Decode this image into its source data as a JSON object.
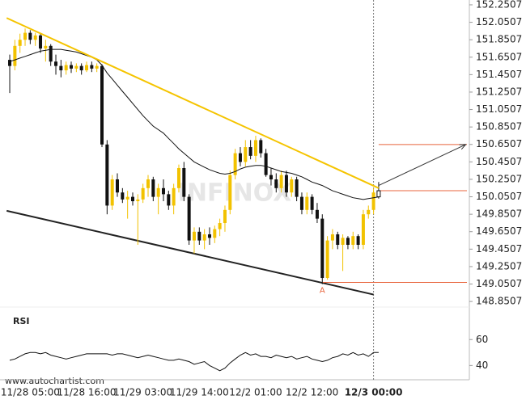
{
  "chart_data": {
    "type": "candlestick",
    "categories": [
      null,
      null,
      null,
      null,
      "11/28 05:00",
      null,
      null,
      null,
      null,
      null,
      null,
      null,
      null,
      null,
      null,
      "11/28 16:00",
      null,
      null,
      null,
      null,
      null,
      null,
      null,
      null,
      null,
      null,
      "11/29 03:00",
      null,
      null,
      null,
      null,
      null,
      null,
      null,
      null,
      null,
      null,
      "11/29 14:00",
      null,
      null,
      null,
      null,
      null,
      null,
      null,
      null,
      null,
      null,
      "12/2 01:00",
      null,
      null,
      null,
      null,
      null,
      null,
      null,
      null,
      null,
      null,
      "12/2 12:00",
      null,
      null,
      null,
      null,
      null,
      null,
      null,
      null,
      null,
      null,
      null,
      "12/3 00:00",
      null
    ],
    "open": [
      151.62,
      151.55,
      151.78,
      151.85,
      151.93,
      151.85,
      151.9,
      151.75,
      151.78,
      151.6,
      151.55,
      151.5,
      151.56,
      151.52,
      151.55,
      151.5,
      151.56,
      151.52,
      151.55,
      150.65,
      149.95,
      150.25,
      150.1,
      150.02,
      150.05,
      150.0,
      150.02,
      150.15,
      150.25,
      150.05,
      150.15,
      150.08,
      149.95,
      150.15,
      150.38,
      150.05,
      149.55,
      149.65,
      149.55,
      149.62,
      149.58,
      149.68,
      149.75,
      149.9,
      150.3,
      150.55,
      150.45,
      150.62,
      150.52,
      150.7,
      150.55,
      150.3,
      150.25,
      150.15,
      150.3,
      150.1,
      150.25,
      150.05,
      149.9,
      150.05,
      149.9,
      149.8,
      149.12,
      149.55,
      149.62,
      149.5,
      149.58,
      149.5,
      149.6,
      149.5,
      149.85,
      149.9,
      150.05
    ],
    "high": [
      151.68,
      151.85,
      151.92,
      151.98,
      151.96,
      151.93,
      151.92,
      151.85,
      151.8,
      151.68,
      151.62,
      151.6,
      151.6,
      151.58,
      151.58,
      151.6,
      151.6,
      151.58,
      151.57,
      150.7,
      150.3,
      150.32,
      150.15,
      150.12,
      150.1,
      150.08,
      150.2,
      150.3,
      150.28,
      150.2,
      150.25,
      150.12,
      150.2,
      150.42,
      150.45,
      150.08,
      149.7,
      149.7,
      149.68,
      149.7,
      149.72,
      149.8,
      149.95,
      150.35,
      150.6,
      150.62,
      150.7,
      150.7,
      150.75,
      150.72,
      150.6,
      150.38,
      150.32,
      150.35,
      150.35,
      150.28,
      150.28,
      150.1,
      150.1,
      150.08,
      149.98,
      149.85,
      149.6,
      149.68,
      149.65,
      149.62,
      149.6,
      149.65,
      149.62,
      149.9,
      149.95,
      150.15,
      150.22
    ],
    "low": [
      151.24,
      151.5,
      151.7,
      151.78,
      151.8,
      151.78,
      151.7,
      151.6,
      151.55,
      151.45,
      151.42,
      151.45,
      151.47,
      151.48,
      151.45,
      151.48,
      151.48,
      151.48,
      150.62,
      149.85,
      149.9,
      150.05,
      149.98,
      149.8,
      149.95,
      149.5,
      149.98,
      150.05,
      150.0,
      149.85,
      150.0,
      149.9,
      149.85,
      150.1,
      150.0,
      149.5,
      149.4,
      149.5,
      149.45,
      149.5,
      149.52,
      149.6,
      149.65,
      149.85,
      150.25,
      150.4,
      150.4,
      150.48,
      150.45,
      150.5,
      150.28,
      150.18,
      150.1,
      150.1,
      150.05,
      150.05,
      150.0,
      149.85,
      149.85,
      149.85,
      149.75,
      149.05,
      149.1,
      149.45,
      149.45,
      149.2,
      149.45,
      149.45,
      149.45,
      149.45,
      149.8,
      149.85,
      150.03
    ],
    "close": [
      151.55,
      151.78,
      151.85,
      151.93,
      151.85,
      151.9,
      151.75,
      151.78,
      151.6,
      151.55,
      151.5,
      151.56,
      151.52,
      151.55,
      151.5,
      151.56,
      151.52,
      151.55,
      150.65,
      149.95,
      150.25,
      150.1,
      150.02,
      150.05,
      150.0,
      150.02,
      150.15,
      150.25,
      150.05,
      150.15,
      150.08,
      149.95,
      150.15,
      150.38,
      150.05,
      149.55,
      149.65,
      149.55,
      149.62,
      149.58,
      149.68,
      149.75,
      149.9,
      150.3,
      150.55,
      150.45,
      150.62,
      150.52,
      150.7,
      150.55,
      150.3,
      150.25,
      150.15,
      150.3,
      150.1,
      150.25,
      150.05,
      149.9,
      150.05,
      149.9,
      149.8,
      149.12,
      149.55,
      149.62,
      149.5,
      149.58,
      149.5,
      149.6,
      149.5,
      149.85,
      149.9,
      150.1,
      150.12
    ],
    "up_color": "#f2c200",
    "down_color": "#111111",
    "last_candle_color": "#ffffff",
    "moving_average": {
      "color": "#111111",
      "values": [
        151.6,
        151.62,
        151.64,
        151.66,
        151.68,
        151.7,
        151.72,
        151.73,
        151.74,
        151.74,
        151.74,
        151.73,
        151.72,
        151.71,
        151.69,
        151.67,
        151.65,
        151.62,
        151.56,
        151.47,
        151.4,
        151.33,
        151.26,
        151.19,
        151.12,
        151.05,
        150.98,
        150.92,
        150.86,
        150.82,
        150.78,
        150.72,
        150.66,
        150.6,
        150.55,
        150.5,
        150.45,
        150.42,
        150.39,
        150.36,
        150.34,
        150.32,
        150.31,
        150.32,
        150.34,
        150.37,
        150.39,
        150.4,
        150.41,
        150.41,
        150.4,
        150.38,
        150.36,
        150.34,
        150.33,
        150.32,
        150.3,
        150.28,
        150.25,
        150.22,
        150.2,
        150.18,
        150.15,
        150.12,
        150.1,
        150.08,
        150.06,
        150.04,
        150.03,
        150.02,
        150.03,
        150.04,
        150.05
      ]
    },
    "xlim": [
      -1.9,
      89.7
    ],
    "ylim": [
      148.787,
      152.306
    ],
    "yticks": [
      152.2507,
      152.0507,
      151.8507,
      151.6507,
      151.4507,
      151.2507,
      151.0507,
      150.8507,
      150.6507,
      150.4507,
      150.2507,
      150.0507,
      149.8507,
      149.6507,
      149.4507,
      149.2507,
      149.0507,
      148.8507
    ],
    "trend_lines": [
      {
        "color": "#f5c400",
        "x": [
          -0.6,
          72
        ],
        "y": [
          152.1,
          150.15
        ]
      },
      {
        "color": "#222222",
        "x": [
          -0.6,
          71
        ],
        "y": [
          149.89,
          148.93
        ]
      }
    ],
    "levels": [
      {
        "color": "#e8643c",
        "from": 72,
        "value": 150.65
      },
      {
        "color": "#e8643c",
        "from": 72,
        "value": 150.12
      },
      {
        "color": "#e8643c",
        "from": 61,
        "value": 149.07
      }
    ],
    "arrow": {
      "color": "#333333",
      "x": [
        72,
        89
      ],
      "y": [
        150.18,
        150.65
      ]
    },
    "pattern_point": {
      "label": "A",
      "x": 61,
      "y": 149.05,
      "color": "#e8643c"
    },
    "current_time_index": 71,
    "rsi": {
      "label": "RSI",
      "color": "#111111",
      "ylim": [
        29,
        82
      ],
      "yticks": [
        60,
        40
      ],
      "values": [
        44,
        45,
        47,
        49,
        50,
        50,
        49,
        50,
        48,
        47,
        46,
        45,
        46,
        47,
        48,
        49,
        49,
        49,
        49,
        49,
        48,
        49,
        49,
        48,
        47,
        46,
        47,
        48,
        47,
        46,
        45,
        44,
        44,
        45,
        44,
        43,
        41,
        42,
        43,
        40,
        38,
        36,
        38,
        42,
        45,
        48,
        50,
        48,
        49,
        47,
        47,
        46,
        48,
        47,
        46,
        47,
        45,
        46,
        47,
        45,
        44,
        43,
        44,
        46,
        47,
        49,
        48,
        50,
        48,
        49,
        47,
        50,
        50
      ]
    },
    "watermark": "INFINOX",
    "source": "www.autochartist.com"
  }
}
